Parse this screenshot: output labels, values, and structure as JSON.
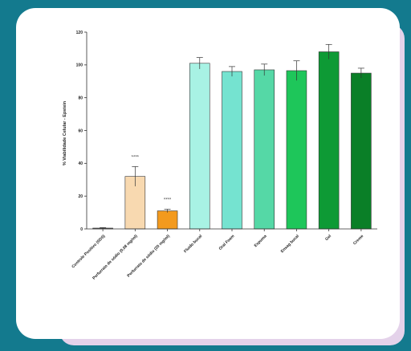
{
  "chart_data": {
    "type": "bar",
    "ylabel": "% Viabilidade Celular - Epstein",
    "xlabel": "",
    "ylim": [
      0,
      120
    ],
    "yticks": [
      0,
      20,
      40,
      60,
      80,
      100,
      120
    ],
    "categories": [
      "Controle Positivo (SDS)",
      "Perfurrato de sódio (0,08 mg/ml)",
      "Perfurrato de sódio (20 mg/ml)",
      "Fluido bucal",
      "Oral Foam",
      "Espuma",
      "Enxag bucal",
      "Gel",
      "Creme"
    ],
    "values": [
      0.5,
      32,
      11,
      101,
      96,
      97,
      96.5,
      108,
      95
    ],
    "errors": [
      0.3,
      6,
      1,
      3.5,
      3,
      3.5,
      6,
      4.5,
      3
    ],
    "significance": [
      "",
      "****",
      "****",
      "",
      "",
      "",
      "",
      "",
      ""
    ],
    "colors": [
      "#6d6d6d",
      "#f8d9b0",
      "#f39a1e",
      "#a8f2e4",
      "#75e3d0",
      "#55d8a6",
      "#1ec65a",
      "#0e9a35",
      "#0a7f27"
    ],
    "grid": false
  }
}
